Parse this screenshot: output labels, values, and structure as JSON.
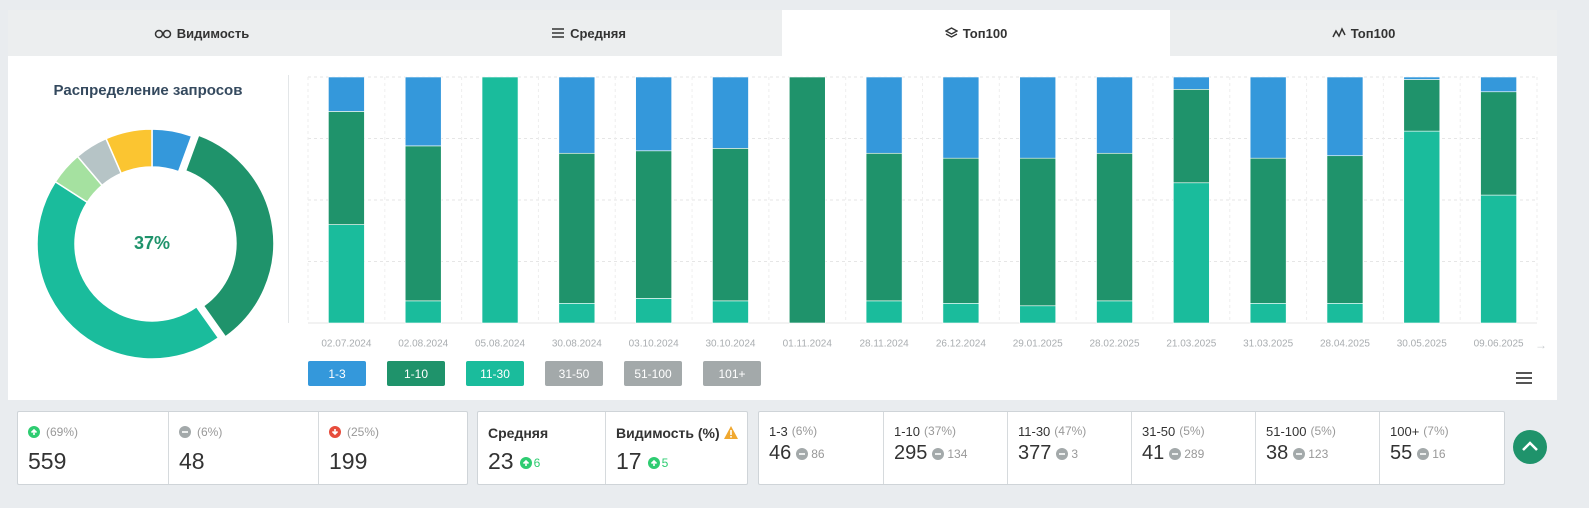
{
  "tabs": [
    "Видимость",
    "Средняя",
    "Топ100",
    "Топ100"
  ],
  "active_tab": 2,
  "chart_data": [
    {
      "type": "donut",
      "title": "Распределение запросов",
      "center_label": "37%",
      "values": [
        6,
        37,
        47,
        5,
        5,
        7
      ],
      "colors": [
        "#3498db",
        "#1f936b",
        "#1abc9c",
        "#a5e1a0",
        "#b6c4c6",
        "#fbc531"
      ],
      "highlight": 1
    },
    {
      "type": "bar",
      "stacked": true,
      "categories": [
        "02.07.2024",
        "02.08.2024",
        "05.08.2024",
        "30.08.2024",
        "03.10.2024",
        "30.10.2024",
        "01.11.2024",
        "28.11.2024",
        "26.12.2024",
        "29.01.2025",
        "28.02.2025",
        "21.03.2025",
        "31.03.2025",
        "28.04.2025",
        "30.05.2025",
        "09.06.2025"
      ],
      "series": [
        {
          "name": "1-3",
          "color": "#3498db",
          "values": [
            14,
            28,
            0,
            31,
            30,
            29,
            0,
            31,
            33,
            33,
            31,
            5,
            33,
            32,
            1,
            6
          ]
        },
        {
          "name": "1-10",
          "color": "#1f936b",
          "values": [
            46,
            63,
            0,
            61,
            60,
            62,
            100,
            60,
            59,
            60,
            60,
            38,
            59,
            60,
            21,
            42
          ]
        },
        {
          "name": "11-30",
          "color": "#1abc9c",
          "values": [
            40,
            9,
            100,
            8,
            10,
            9,
            0,
            9,
            8,
            7,
            9,
            57,
            8,
            8,
            78,
            52
          ]
        },
        {
          "name": "31-50",
          "color": "#a3a9aa",
          "hidden": true,
          "values": [
            null,
            null,
            null,
            null,
            null,
            null,
            null,
            null,
            null,
            null,
            null,
            null,
            null,
            null,
            null,
            null
          ]
        },
        {
          "name": "51-100",
          "color": "#a3a9aa",
          "hidden": true,
          "values": [
            null,
            null,
            null,
            null,
            null,
            null,
            null,
            null,
            null,
            null,
            null,
            null,
            null,
            null,
            null,
            null
          ]
        },
        {
          "name": "101+",
          "color": "#a3a9aa",
          "hidden": true,
          "values": [
            null,
            null,
            null,
            null,
            null,
            null,
            null,
            null,
            null,
            null,
            null,
            null,
            null,
            null,
            null,
            null
          ]
        }
      ],
      "ylim": [
        0,
        100
      ],
      "yticks": [
        0,
        25,
        50,
        75,
        100
      ],
      "grid": true
    }
  ],
  "stats": {
    "summary": [
      {
        "trend": "up",
        "change": "(69%)",
        "value": 559
      },
      {
        "trend": "flat",
        "change": "(6%)",
        "value": 48
      },
      {
        "trend": "down",
        "change": "(25%)",
        "value": 199
      }
    ],
    "averages": [
      {
        "label": "Средняя",
        "value": 23,
        "delta": 6
      },
      {
        "label": "Видимость (%)",
        "value": 17,
        "delta": 5,
        "warning": true
      }
    ],
    "ranges": [
      {
        "label": "1-3",
        "share": "(6%)",
        "value": 46,
        "delta": 86
      },
      {
        "label": "1-10",
        "share": "(37%)",
        "value": 295,
        "delta": 134
      },
      {
        "label": "11-30",
        "share": "(47%)",
        "value": 377,
        "delta": 3
      },
      {
        "label": "31-50",
        "share": "(5%)",
        "value": 41,
        "delta": 289
      },
      {
        "label": "51-100",
        "share": "(5%)",
        "value": 38,
        "delta": 123
      },
      {
        "label": "100+",
        "share": "(7%)",
        "value": 55,
        "delta": 16
      }
    ]
  }
}
